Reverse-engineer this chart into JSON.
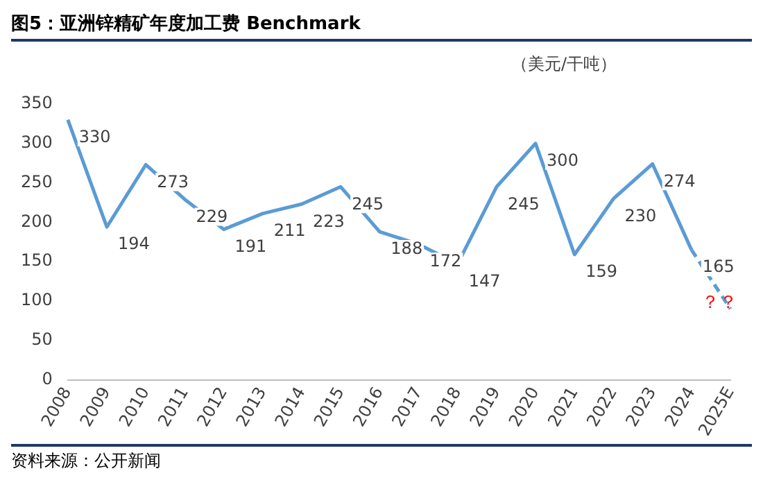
{
  "chart_data": {
    "type": "line",
    "title": "图5：亚洲锌精矿年度加工费 Benchmark",
    "ylabel": "（美元/干吨）",
    "categories": [
      "2008",
      "2009",
      "2010",
      "2011",
      "2012",
      "2013",
      "2014",
      "2015",
      "2016",
      "2017",
      "2018",
      "2019",
      "2020",
      "2021",
      "2022",
      "2023",
      "2024",
      "2025E"
    ],
    "series": [
      {
        "color": "#5b9bd5",
        "values": [
          330,
          194,
          273,
          229,
          191,
          211,
          223,
          245,
          188,
          172,
          147,
          245,
          300,
          159,
          230,
          274,
          165,
          null
        ],
        "value_labels": [
          "330",
          "194",
          "273",
          "229",
          "191",
          "211",
          "223",
          "245",
          "188",
          "172",
          "147",
          "245",
          "300",
          "159",
          "230",
          "274",
          "165",
          null
        ],
        "line_style": "solid"
      },
      {
        "color": "#5b9bd5",
        "values": [
          null,
          null,
          null,
          null,
          null,
          null,
          null,
          null,
          null,
          null,
          null,
          null,
          null,
          null,
          null,
          null,
          165,
          90
        ],
        "value_labels": [
          null,
          null,
          null,
          null,
          null,
          null,
          null,
          null,
          null,
          null,
          null,
          null,
          null,
          null,
          null,
          null,
          null,
          null
        ],
        "line_style": "dashed"
      }
    ],
    "ylim": [
      0,
      350
    ],
    "yticks": [
      0,
      50,
      100,
      150,
      200,
      250,
      300,
      350
    ],
    "grid": false,
    "legend": false,
    "marker": "none",
    "annotations": [
      "？？",
      "资料来源：公开新闻"
    ]
  }
}
